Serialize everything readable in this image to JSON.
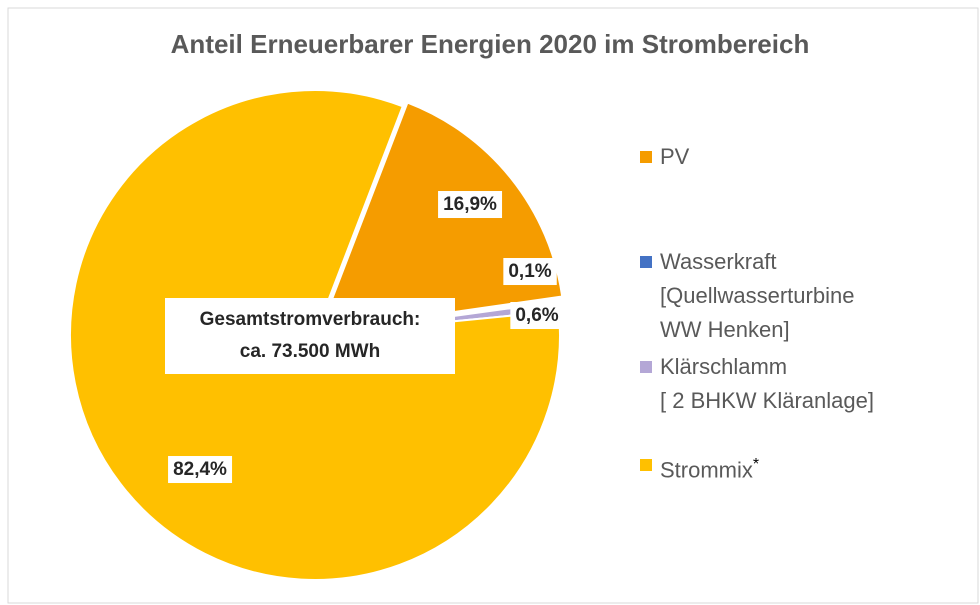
{
  "chart_data": {
    "type": "pie",
    "title": "Anteil Erneuerbarer  Energien 2020 im Strombereich",
    "series": [
      {
        "name": "PV",
        "color": "#f59c00",
        "values": [
          16.9
        ],
        "value_labels": [
          "16,9%"
        ]
      },
      {
        "name": "Wasserkraft\n[Quellwasserturbine\nWW Henken]",
        "color": "#4472c4",
        "values": [
          0.1
        ],
        "value_labels": [
          "0,1%"
        ]
      },
      {
        "name": "Klärschlamm\n[ 2 BHKW Kläranlage]",
        "color": "#b4a7d6",
        "values": [
          0.6
        ],
        "value_labels": [
          "0,6%"
        ]
      },
      {
        "name": "Strommix",
        "color": "#ffc000",
        "values": [
          82.4
        ],
        "value_labels": [
          "82,4%"
        ],
        "name_mark": "*"
      }
    ],
    "annotation": [
      "Gesamtstromverbrauch:",
      "ca. 73.500 MWh"
    ],
    "legend": "right"
  }
}
